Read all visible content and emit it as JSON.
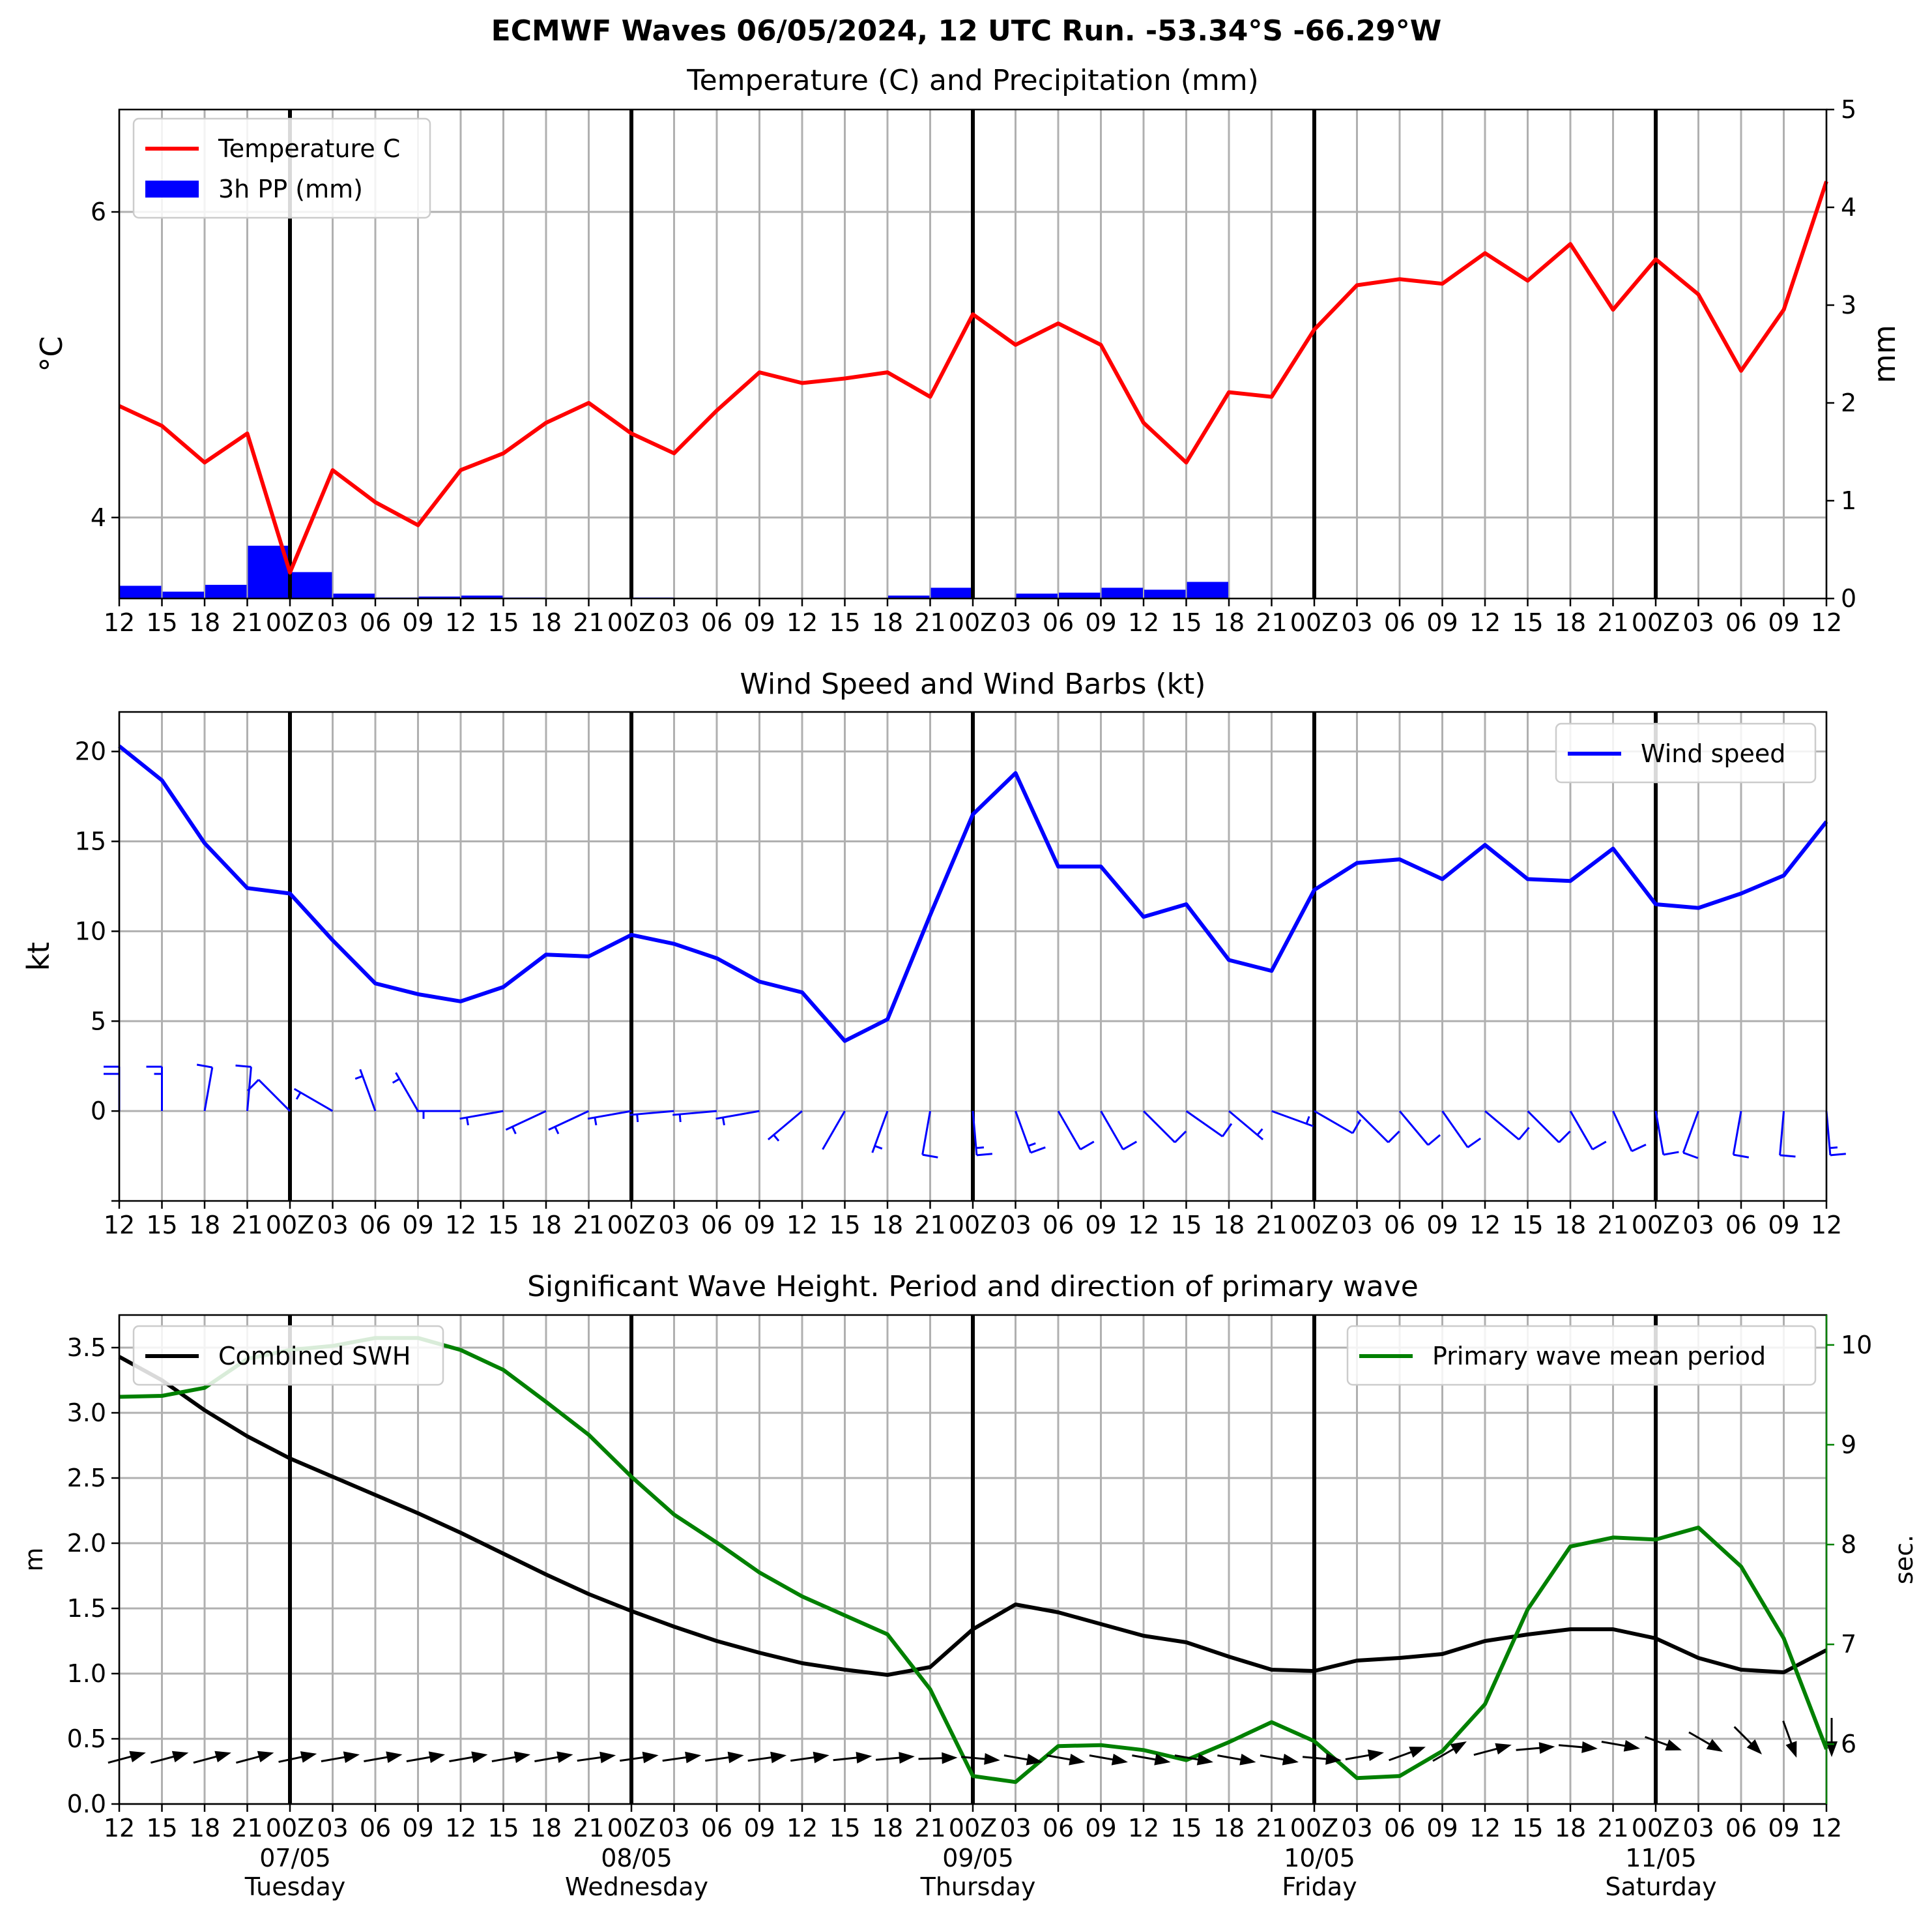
{
  "suptitle": "ECMWF Waves 06/05/2024, 12 UTC Run. -53.34°S -66.29°W",
  "colors": {
    "temp": "#ff0000",
    "precip": "#0000ff",
    "wind": "#0000ff",
    "swh": "#000000",
    "period": "#008000",
    "grid": "#b0b0b0"
  },
  "time_axis": {
    "tick_labels": [
      "12",
      "15",
      "18",
      "21",
      "00Z",
      "03",
      "06",
      "09",
      "12",
      "15",
      "18",
      "21",
      "00Z",
      "03",
      "06",
      "09",
      "12",
      "15",
      "18",
      "21",
      "00Z",
      "03",
      "06",
      "09",
      "12",
      "15",
      "18",
      "21",
      "00Z",
      "03",
      "06",
      "09",
      "12",
      "15",
      "18",
      "21",
      "00Z",
      "03",
      "06",
      "09",
      "12"
    ],
    "day_boundaries": [
      4,
      12,
      20,
      28,
      36
    ],
    "day_labels": [
      {
        "date": "07/05",
        "day": "Tuesday"
      },
      {
        "date": "08/05",
        "day": "Wednesday"
      },
      {
        "date": "09/05",
        "day": "Thursday"
      },
      {
        "date": "10/05",
        "day": "Friday"
      },
      {
        "date": "11/05",
        "day": "Saturday"
      }
    ]
  },
  "chart_data": [
    {
      "type": "line",
      "title": "Temperature (C) and Precipitation (mm)",
      "ylabel": "°C",
      "y2label": "mm",
      "ylim": [
        3.47,
        6.67
      ],
      "yticks": [
        4,
        6
      ],
      "y2lim": [
        0,
        5
      ],
      "y2ticks": [
        0,
        1,
        2,
        3,
        4,
        5
      ],
      "legend": [
        "Temperature C",
        "3h PP (mm)"
      ],
      "legend_position": "upper-left",
      "series": [
        {
          "name": "Temperature C",
          "kind": "line",
          "axis": "left",
          "values": [
            4.73,
            4.6,
            4.36,
            4.55,
            3.64,
            4.31,
            4.1,
            3.95,
            4.31,
            4.42,
            4.62,
            4.75,
            4.55,
            4.42,
            4.7,
            4.95,
            4.88,
            4.91,
            4.95,
            4.79,
            5.33,
            5.13,
            5.27,
            5.13,
            4.62,
            4.36,
            4.82,
            4.79,
            5.23,
            5.52,
            5.56,
            5.53,
            5.73,
            5.55,
            5.79,
            5.36,
            5.69,
            5.46,
            4.96,
            5.36,
            6.2
          ]
        },
        {
          "name": "3h PP (mm)",
          "kind": "bar",
          "axis": "right",
          "values": [
            0.13,
            0.07,
            0.14,
            0.54,
            0.27,
            0.05,
            0.01,
            0.02,
            0.03,
            0.01,
            0,
            0,
            0.01,
            0,
            0,
            0,
            0,
            0,
            0.03,
            0.11,
            0,
            0.05,
            0.06,
            0.11,
            0.09,
            0.17,
            0,
            0,
            0,
            0,
            0,
            0,
            0,
            0,
            0,
            0,
            0,
            0,
            0,
            0,
            0
          ]
        }
      ]
    },
    {
      "type": "line",
      "title": "Wind Speed and Wind Barbs (kt)",
      "ylabel": "kt",
      "ylim": [
        -5,
        22.2
      ],
      "yticks": [
        0,
        5,
        10,
        15,
        20
      ],
      "legend": [
        "Wind speed"
      ],
      "legend_position": "upper-right",
      "series": [
        {
          "name": "Wind speed",
          "kind": "line",
          "values": [
            20.3,
            18.4,
            14.9,
            12.4,
            12.1,
            9.5,
            7.1,
            6.5,
            6.1,
            6.9,
            8.7,
            8.6,
            9.8,
            9.3,
            8.5,
            7.2,
            6.6,
            3.9,
            5.1,
            10.9,
            16.5,
            18.8,
            13.6,
            13.6,
            10.8,
            11.5,
            8.4,
            7.8,
            12.3,
            13.8,
            14.0,
            12.9,
            14.8,
            12.9,
            12.8,
            14.6,
            11.5,
            11.3,
            12.1,
            13.1,
            16.1
          ]
        }
      ],
      "barb_directions_deg": [
        180,
        180,
        170,
        175,
        225,
        240,
        200,
        210,
        270,
        280,
        295,
        295,
        280,
        275,
        275,
        280,
        310,
        330,
        340,
        350,
        5,
        20,
        30,
        30,
        45,
        55,
        50,
        70,
        60,
        45,
        40,
        35,
        50,
        45,
        30,
        25,
        10,
        340,
        350,
        355,
        5
      ]
    },
    {
      "type": "line",
      "title": "Significant Wave Height. Period and direction of primary wave",
      "ylabel": "m",
      "y2label": "sec.",
      "ylim": [
        0,
        3.75
      ],
      "yticks": [
        0.0,
        0.5,
        1.0,
        1.5,
        2.0,
        2.5,
        3.0,
        3.5
      ],
      "y2lim": [
        5.4,
        10.3
      ],
      "y2ticks": [
        6,
        7,
        8,
        9,
        10
      ],
      "legend_left": [
        "Combined SWH"
      ],
      "legend_right": [
        "Primary wave mean period"
      ],
      "series": [
        {
          "name": "Combined SWH",
          "kind": "line",
          "axis": "left",
          "values": [
            3.43,
            3.25,
            3.02,
            2.82,
            2.65,
            2.51,
            2.37,
            2.23,
            2.08,
            1.92,
            1.76,
            1.61,
            1.48,
            1.36,
            1.25,
            1.16,
            1.08,
            1.03,
            0.99,
            1.05,
            1.34,
            1.53,
            1.47,
            1.38,
            1.29,
            1.24,
            1.13,
            1.03,
            1.02,
            1.1,
            1.12,
            1.15,
            1.25,
            1.3,
            1.34,
            1.34,
            1.27,
            1.12,
            1.03,
            1.01,
            1.18
          ]
        },
        {
          "name": "Primary wave mean period",
          "kind": "line",
          "axis": "right",
          "values": [
            9.48,
            9.49,
            9.57,
            9.86,
            9.95,
            9.99,
            10.07,
            10.07,
            9.95,
            9.75,
            9.43,
            9.1,
            8.68,
            8.3,
            8.02,
            7.72,
            7.48,
            7.29,
            7.1,
            6.55,
            5.68,
            5.62,
            5.98,
            5.99,
            5.94,
            5.84,
            6.02,
            6.22,
            6.03,
            5.66,
            5.68,
            5.93,
            6.4,
            7.35,
            7.98,
            8.07,
            8.05,
            8.17,
            7.78,
            7.06,
            5.95
          ]
        }
      ],
      "arrow_directions_deg": [
        75,
        75,
        75,
        75,
        78,
        80,
        80,
        80,
        80,
        80,
        80,
        82,
        82,
        82,
        82,
        82,
        82,
        84,
        85,
        88,
        95,
        100,
        100,
        100,
        100,
        100,
        100,
        100,
        95,
        80,
        70,
        60,
        75,
        85,
        95,
        100,
        110,
        120,
        135,
        160,
        180
      ]
    }
  ]
}
